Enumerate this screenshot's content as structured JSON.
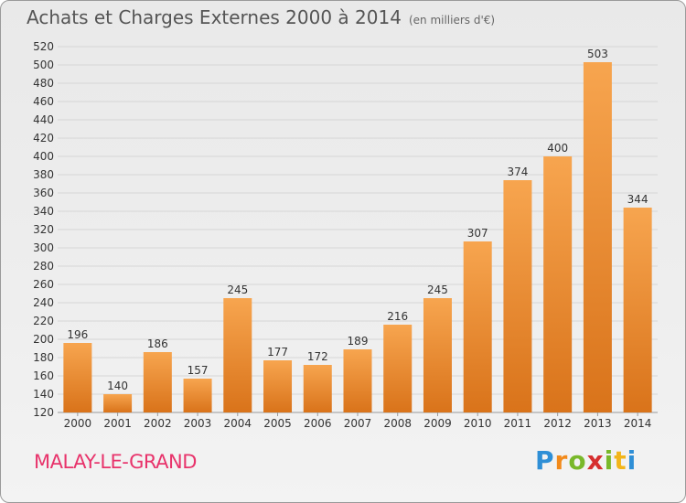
{
  "title": "Achats et Charges Externes 2000 à 2014",
  "unit": "(en milliers d'€)",
  "town": "MALAY-LE-GRAND",
  "logo": {
    "letters": [
      "P",
      "r",
      "o",
      "x",
      "i",
      "t",
      "i"
    ],
    "colors": [
      "#2f8fd6",
      "#f28a1b",
      "#79b82a",
      "#d62f2f",
      "#79b82a",
      "#f2b51b",
      "#2f8fd6"
    ]
  },
  "colors": {
    "bar_top": "#f7a54f",
    "bar_bottom": "#d9731a",
    "grid": "#d6d6d6",
    "axis_text": "#333333"
  },
  "chart_data": {
    "type": "bar",
    "categories": [
      "2000",
      "2001",
      "2002",
      "2003",
      "2004",
      "2005",
      "2006",
      "2007",
      "2008",
      "2009",
      "2010",
      "2011",
      "2012",
      "2013",
      "2014"
    ],
    "values": [
      196,
      140,
      186,
      157,
      245,
      177,
      172,
      189,
      216,
      245,
      307,
      374,
      400,
      503,
      344
    ],
    "title": "Achats et Charges Externes 2000 à 2014",
    "ylim": [
      120,
      520
    ],
    "ytick_step": 20,
    "grid": true
  }
}
